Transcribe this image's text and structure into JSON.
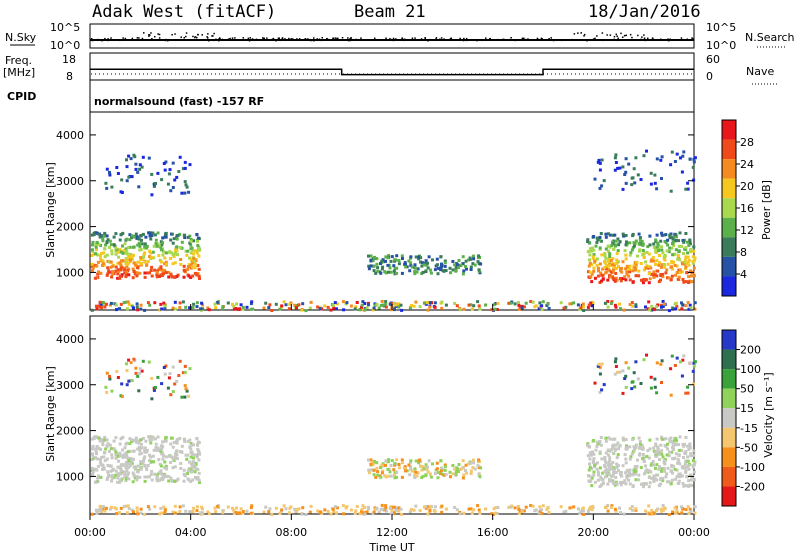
{
  "header": {
    "station": "Adak West (fitACF)",
    "beam": "Beam 21",
    "date": "18/Jan/2016"
  },
  "labels": {
    "nsky": "N.Sky",
    "nsky_tick_top": "10^5",
    "nsky_tick_bottom": "10^0",
    "nsearch": "N.Search",
    "nsearch_tick_top": "10^5",
    "nsearch_tick_bottom": "10^0",
    "freq": "Freq.",
    "freq_unit": "[MHz]",
    "freq_tick_top": "18",
    "freq_tick_bottom": "8",
    "nave": "Nave",
    "nave_tick_top": "60",
    "nave_tick_bottom": "0",
    "cpid": "CPID",
    "cpid_text": "normalsound (fast) -157 RF"
  },
  "chart_data": [
    {
      "type": "heatmap",
      "name": "power",
      "ylabel": "Slant Range [km]",
      "ylim": [
        180,
        4500
      ],
      "yticks": [
        1000,
        2000,
        3000,
        4000
      ],
      "colorbar_label": "Power [dB]",
      "colorbar_ticks": [
        "28",
        "24",
        "20",
        "16",
        "12",
        "8",
        "4"
      ],
      "colorbar_range": [
        0,
        30
      ],
      "colors": [
        "#e8171b",
        "#f04a1a",
        "#f58a21",
        "#f5c71f",
        "#a8d84e",
        "#5bb04a",
        "#3a7b5b",
        "#2652a6",
        "#1a28e0"
      ]
    },
    {
      "type": "heatmap",
      "name": "velocity",
      "ylabel": "Slant Range [km]",
      "ylim": [
        180,
        4500
      ],
      "yticks": [
        1000,
        2000,
        3000,
        4000
      ],
      "colorbar_label": "Velocity [m s⁻¹]",
      "colorbar_ticks": [
        "200",
        "100",
        "50",
        "15",
        "-15",
        "-50",
        "-100",
        "-200"
      ],
      "colors": [
        "#2538c8",
        "#2e6f4f",
        "#39a23a",
        "#8fd35b",
        "#c8c8c4",
        "#f4c76e",
        "#f5901b",
        "#f05a1a",
        "#e41818"
      ]
    }
  ],
  "time_axis": {
    "xlabel": "Time UT",
    "ticks": [
      "00:00",
      "04:00",
      "08:00",
      "12:00",
      "16:00",
      "20:00",
      "00:00"
    ],
    "range_hours": [
      0,
      24
    ]
  },
  "freq_series": {
    "segments": [
      {
        "start": 0,
        "end": 10,
        "value": 12
      },
      {
        "start": 10,
        "end": 18,
        "value": 10
      },
      {
        "start": 18,
        "end": 24,
        "value": 12
      }
    ],
    "ylim": [
      8,
      18
    ]
  }
}
